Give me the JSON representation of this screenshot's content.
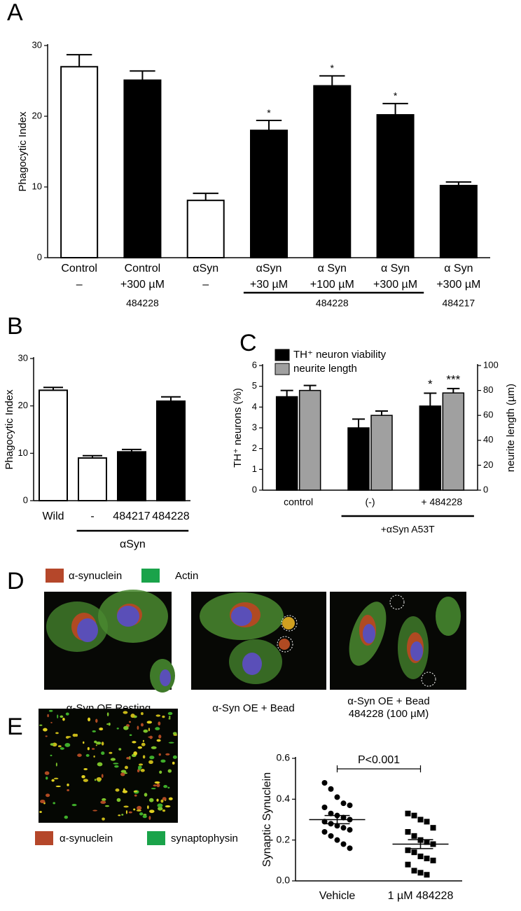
{
  "panel_labels": [
    "A",
    "B",
    "C",
    "D",
    "E"
  ],
  "chart_data": [
    {
      "type": "bar",
      "ylabel": "Phagocytic Index",
      "ylim": [
        0,
        30
      ],
      "yticks": [
        0,
        10,
        20,
        30
      ],
      "categories": [
        [
          "Control",
          "–"
        ],
        [
          "Control",
          "+300 µM"
        ],
        [
          "αSyn",
          "–"
        ],
        [
          "αSyn",
          "+30 µM"
        ],
        [
          "α Syn",
          "+100 µM"
        ],
        [
          "α Syn",
          "+300 µM"
        ],
        [
          "α Syn",
          "+300 µM"
        ]
      ],
      "sublabels": [
        null,
        "484228",
        null,
        null,
        "484228",
        null,
        "484217"
      ],
      "bracket": [
        false,
        false,
        false,
        true,
        true,
        true,
        false
      ],
      "values": [
        27,
        25.1,
        8.1,
        18,
        24.3,
        20.2,
        10.2
      ],
      "errors": [
        1.7,
        1.3,
        1,
        1.4,
        1.4,
        1.6,
        0.5
      ],
      "colors": [
        "#ffffff",
        "#000000",
        "#ffffff",
        "#000000",
        "#000000",
        "#000000",
        "#000000"
      ],
      "significance": [
        null,
        null,
        null,
        "*",
        "*",
        "*",
        null
      ]
    },
    {
      "type": "bar",
      "ylabel": "Phagocytic Index",
      "ylim": [
        0,
        30
      ],
      "yticks": [
        0,
        10,
        20,
        30
      ],
      "categories": [
        [
          "Wild"
        ],
        [
          "-"
        ],
        [
          "484217"
        ],
        [
          "484228"
        ]
      ],
      "bracket": [
        false,
        true,
        true,
        true
      ],
      "bracket_label": "αSyn",
      "values": [
        23.3,
        9,
        10.3,
        21
      ],
      "errors": [
        0.6,
        0.5,
        0.5,
        0.9
      ],
      "colors": [
        "#ffffff",
        "#ffffff",
        "#000000",
        "#000000"
      ]
    },
    {
      "type": "grouped-bar",
      "ylabel": "TH⁺ neurons (%)",
      "y2label": "neurite length (µm)",
      "ylim": [
        0,
        6
      ],
      "yticks": [
        0,
        1,
        2,
        3,
        4,
        5,
        6
      ],
      "y2lim": [
        0,
        100
      ],
      "y2ticks": [
        0,
        20,
        40,
        60,
        80,
        100
      ],
      "categories": [
        [
          "control"
        ],
        [
          "(-)"
        ],
        [
          "+ 484228"
        ]
      ],
      "bracket": [
        false,
        true,
        true
      ],
      "bracket_label": "+αSyn A53T",
      "series": [
        {
          "name": "TH⁺ neuron viability",
          "color": "#000000",
          "values": [
            4.5,
            3,
            4.05
          ],
          "errors": [
            0.3,
            0.42,
            0.62
          ],
          "significance": [
            null,
            null,
            "*"
          ]
        },
        {
          "name": "neurite length",
          "color": "#a0a0a0",
          "axis": "y2",
          "values": [
            80,
            60,
            78
          ],
          "errors": [
            4,
            3.5,
            3.5
          ],
          "significance": [
            null,
            null,
            "***"
          ]
        }
      ]
    },
    {
      "type": "dot",
      "ylabel": "Synaptic Synuclein",
      "ylim": [
        0,
        0.6
      ],
      "yticks": [
        {
          "value": 0,
          "label": "0.0"
        },
        0.2,
        0.4,
        0.6
      ],
      "annotation": "P<0.001",
      "series": [
        {
          "name": "Vehicle",
          "marker": "circle",
          "mean": 0.3,
          "sem": 0.02,
          "values": [
            0.48,
            0.45,
            0.41,
            0.38,
            0.37,
            0.36,
            0.33,
            0.32,
            0.31,
            0.3,
            0.29,
            0.28,
            0.27,
            0.26,
            0.25,
            0.24,
            0.22,
            0.2,
            0.18,
            0.16
          ]
        },
        {
          "name": "1 µM 484228",
          "marker": "square",
          "mean": 0.18,
          "sem": 0.022,
          "values": [
            0.33,
            0.32,
            0.3,
            0.29,
            0.26,
            0.24,
            0.22,
            0.2,
            0.19,
            0.18,
            0.15,
            0.14,
            0.12,
            0.11,
            0.1,
            0.08,
            0.05,
            0.04,
            0.03
          ]
        }
      ]
    }
  ],
  "panel_d": {
    "legend": [
      "α-synuclein",
      "Actin"
    ],
    "captions": [
      [
        "α-Syn OE Resting"
      ],
      [
        "α-Syn OE + Bead"
      ],
      [
        "α-Syn OE + Bead",
        "484228 (100 µM)"
      ]
    ]
  },
  "panel_e": {
    "legend": [
      "α-synuclein",
      "synaptophysin"
    ]
  }
}
